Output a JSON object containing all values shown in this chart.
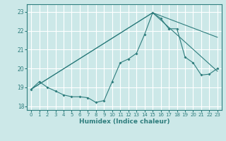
{
  "xlabel": "Humidex (Indice chaleur)",
  "bg_color": "#cce8e8",
  "grid_color": "#ffffff",
  "line_color": "#2e7d7d",
  "xlim": [
    -0.5,
    23.5
  ],
  "ylim": [
    17.8,
    23.4
  ],
  "yticks": [
    18,
    19,
    20,
    21,
    22,
    23
  ],
  "xticks": [
    0,
    1,
    2,
    3,
    4,
    5,
    6,
    7,
    8,
    9,
    10,
    11,
    12,
    13,
    14,
    15,
    16,
    17,
    18,
    19,
    20,
    21,
    22,
    23
  ],
  "line1_x": [
    0,
    1,
    2,
    3,
    4,
    5,
    6,
    7,
    8,
    9,
    10,
    11,
    12,
    13,
    14,
    15,
    16,
    17,
    18,
    19,
    20,
    21,
    22,
    23
  ],
  "line1_y": [
    18.9,
    19.3,
    19.0,
    18.8,
    18.6,
    18.5,
    18.5,
    18.45,
    18.2,
    18.3,
    19.3,
    20.3,
    20.5,
    20.8,
    21.8,
    22.95,
    22.65,
    22.1,
    22.1,
    20.6,
    20.3,
    19.65,
    19.7,
    20.0
  ],
  "line2_x": [
    0,
    15,
    23
  ],
  "line2_y": [
    18.9,
    22.95,
    21.65
  ],
  "line3_x": [
    0,
    15,
    23
  ],
  "line3_y": [
    18.9,
    22.95,
    19.85
  ]
}
